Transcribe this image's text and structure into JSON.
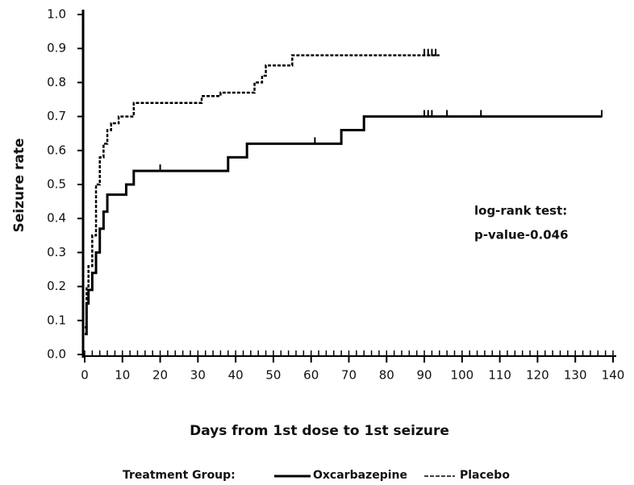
{
  "chart_data": {
    "type": "step",
    "x_label": "Days from 1st dose to 1st seizure",
    "y_label": "Seizure rate",
    "xlim": [
      0,
      140
    ],
    "ylim": [
      0,
      1
    ],
    "xticks": [
      0,
      10,
      20,
      30,
      40,
      50,
      60,
      70,
      80,
      90,
      100,
      110,
      120,
      130,
      140
    ],
    "yticks": [
      {
        "value": 0,
        "label": "0.0"
      },
      0.1,
      0.2,
      0.3,
      0.4,
      0.5,
      0.6,
      0.7,
      0.8,
      0.9,
      {
        "value": 1,
        "label": "1.0"
      }
    ],
    "annotation": [
      "log-rank test:",
      "p-value-0.046"
    ],
    "legend_title": "Treatment Group:",
    "series": [
      {
        "name": "Oxcarbazepine",
        "color": "#000000",
        "dash": "solid",
        "x": [
          0,
          0.5,
          1,
          2,
          3,
          4,
          5,
          6,
          7,
          11,
          13,
          38,
          43,
          68,
          74,
          137
        ],
        "values": [
          0.06,
          0.15,
          0.19,
          0.24,
          0.3,
          0.37,
          0.42,
          0.47,
          0.47,
          0.5,
          0.54,
          0.58,
          0.62,
          0.66,
          0.7,
          0.7
        ],
        "censor_x": [
          20,
          61,
          90,
          91,
          92,
          96,
          105,
          137
        ]
      },
      {
        "name": "Placebo",
        "color": "#000000",
        "dash": "dashed",
        "x": [
          0,
          0.5,
          1,
          2,
          3,
          4,
          5,
          6,
          7,
          9,
          13,
          31,
          36,
          45,
          47,
          48,
          55,
          94
        ],
        "values": [
          0.08,
          0.2,
          0.26,
          0.35,
          0.5,
          0.58,
          0.62,
          0.66,
          0.68,
          0.7,
          0.74,
          0.76,
          0.77,
          0.8,
          0.82,
          0.85,
          0.88,
          0.88
        ],
        "censor_x": [
          90,
          91,
          92,
          93
        ]
      }
    ]
  }
}
